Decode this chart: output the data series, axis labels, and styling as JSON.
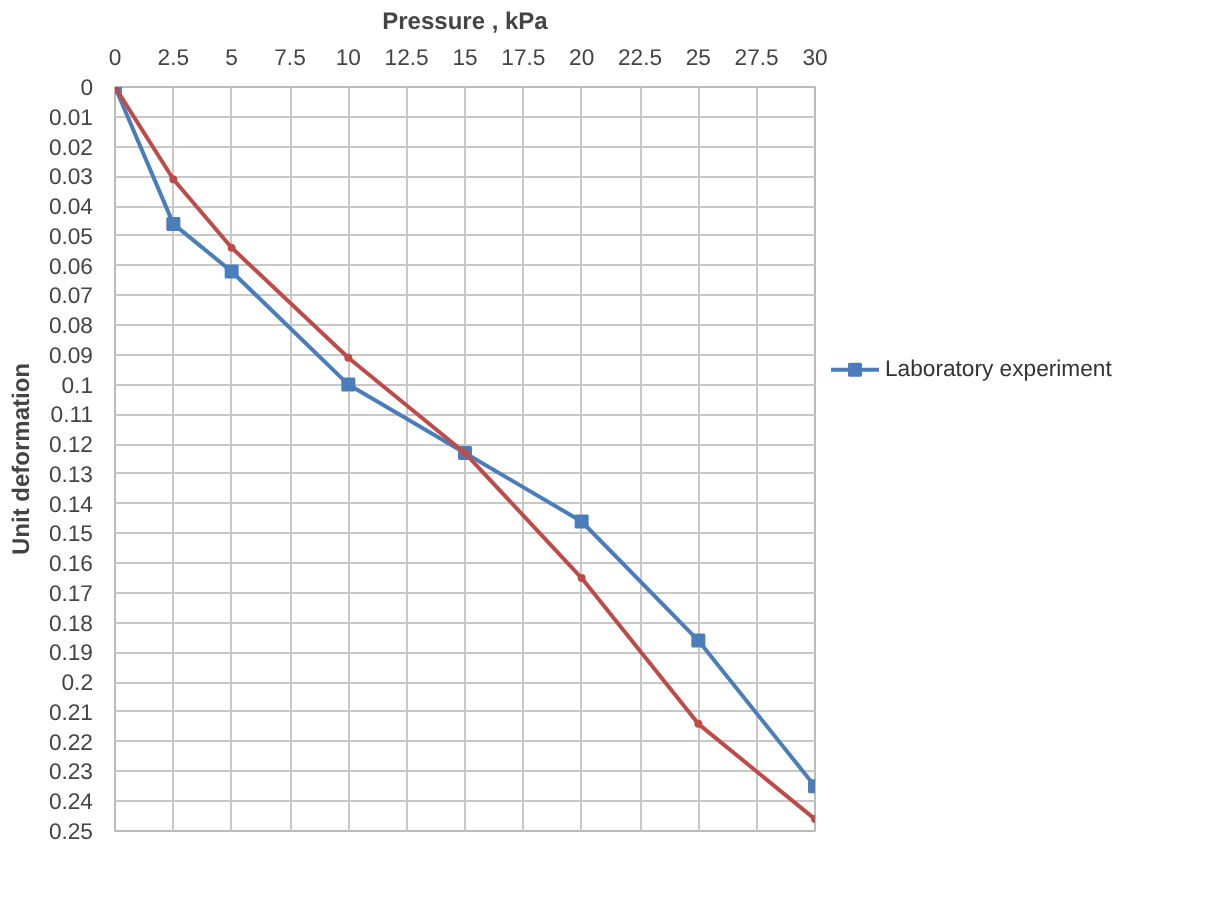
{
  "chart_data": {
    "type": "line",
    "xlabel": "Pressure , kPa",
    "ylabel": "Unit deformation",
    "x": [
      0,
      2.5,
      5,
      10,
      15,
      20,
      25,
      30
    ],
    "series": [
      {
        "name": "Laboratory experiment",
        "color": "#4a7ebb",
        "marker": "square",
        "values": [
          0,
          0.046,
          0.062,
          0.1,
          0.123,
          0.146,
          0.186,
          0.235
        ]
      },
      {
        "color": "#be4b48",
        "marker": "circle",
        "values": [
          0,
          0.031,
          0.054,
          0.091,
          0.123,
          0.165,
          0.214,
          0.246
        ]
      }
    ],
    "xlim": [
      0,
      30
    ],
    "xticks": [
      0,
      2.5,
      5,
      7.5,
      10,
      12.5,
      15,
      17.5,
      20,
      22.5,
      25,
      27.5,
      30
    ],
    "ylim": [
      0.25,
      0
    ],
    "yticks": [
      0,
      0.01,
      0.02,
      0.03,
      0.04,
      0.05,
      0.06,
      0.07,
      0.08,
      0.09,
      0.1,
      0.11,
      0.12,
      0.13,
      0.14,
      0.15,
      0.16,
      0.17,
      0.18,
      0.19,
      0.2,
      0.21,
      0.22,
      0.23,
      0.24,
      0.25
    ],
    "grid": true,
    "legend": "right",
    "line_style": "solid"
  }
}
